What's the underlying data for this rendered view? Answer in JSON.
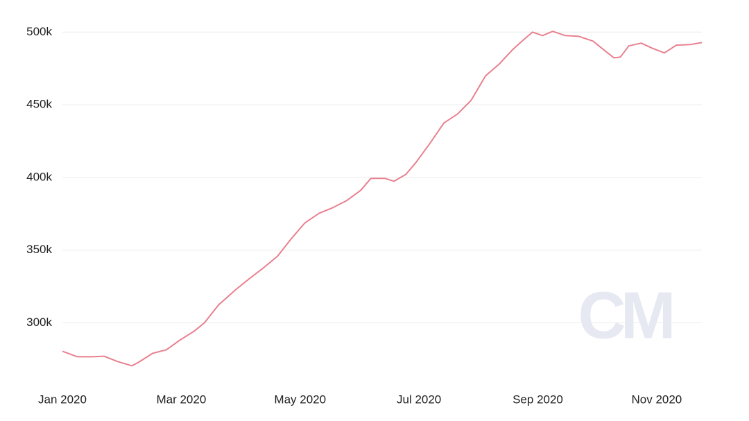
{
  "chart_data": {
    "type": "line",
    "watermark": "CM",
    "x": [
      0,
      0.25,
      0.5,
      0.7,
      0.93,
      1.17,
      1.28,
      1.52,
      1.75,
      1.96,
      2.22,
      2.39,
      2.63,
      2.92,
      3.15,
      3.38,
      3.62,
      3.85,
      4.08,
      4.32,
      4.55,
      4.78,
      5.02,
      5.19,
      5.43,
      5.58,
      5.78,
      5.95,
      6.18,
      6.42,
      6.65,
      6.88,
      7.12,
      7.35,
      7.58,
      7.76,
      7.91,
      8.08,
      8.25,
      8.46,
      8.69,
      8.93,
      9.1,
      9.28,
      9.39,
      9.53,
      9.74,
      9.92,
      10.13,
      10.33,
      10.56,
      10.76
    ],
    "series": [
      {
        "color": "#e8808f",
        "values": [
          280400,
          276600,
          276600,
          277000,
          273300,
          270400,
          272800,
          279000,
          281400,
          287600,
          294300,
          300000,
          312400,
          322900,
          330500,
          337700,
          345800,
          357800,
          368700,
          375400,
          379200,
          384000,
          391200,
          399300,
          399300,
          397400,
          402100,
          410300,
          423200,
          437500,
          443700,
          453200,
          469900,
          478000,
          488100,
          494700,
          500000,
          497600,
          500500,
          497600,
          497100,
          493800,
          488100,
          482300,
          482800,
          490500,
          492400,
          489000,
          485700,
          491000,
          491400,
          492800
        ]
      }
    ],
    "xlim": [
      0,
      10.76
    ],
    "xticks": [
      {
        "value": 0,
        "label": "Jan 2020"
      },
      {
        "value": 2,
        "label": "Mar 2020"
      },
      {
        "value": 4,
        "label": "May 2020"
      },
      {
        "value": 6,
        "label": "Jul 2020"
      },
      {
        "value": 8,
        "label": "Sep 2020"
      },
      {
        "value": 10,
        "label": "Nov 2020"
      }
    ],
    "ylim": [
      262000,
      503000
    ],
    "yticks": [
      {
        "value": 300000,
        "label": "300k"
      },
      {
        "value": 350000,
        "label": "350k"
      },
      {
        "value": 400000,
        "label": "400k"
      },
      {
        "value": 450000,
        "label": "450k"
      },
      {
        "value": 500000,
        "label": "500k"
      }
    ],
    "grid": true
  }
}
